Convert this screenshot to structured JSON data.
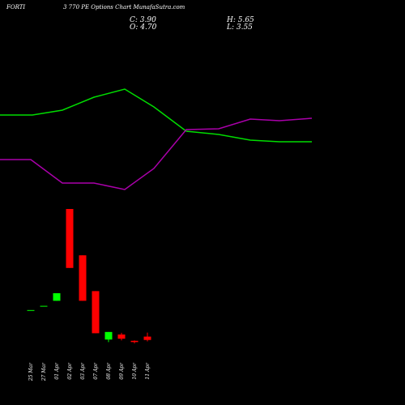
{
  "header": {
    "symbol": "FORTI",
    "subtitle": "3 770 PE Options Chart MunafaSutra.com",
    "close": "C: 3.90",
    "open": "O: 4.70",
    "high": "H: 5.65",
    "low": "L: 3.55"
  },
  "colors": {
    "background": "#000000",
    "up": "#00ff00",
    "down": "#ff0000",
    "line_green": "#00dd00",
    "line_purple": "#aa00aa",
    "text": "#ffffff"
  },
  "chart_data": {
    "type": "candlestick",
    "categories": [
      "25 Mar",
      "27 Mar",
      "01 Apr",
      "02 Apr",
      "03 Apr",
      "07 Apr",
      "08 Apr",
      "09 Apr",
      "10 Apr",
      "11 Apr"
    ],
    "candles": [
      {
        "open": 11.0,
        "high": 11.0,
        "low": 11.0,
        "close": 11.0
      },
      {
        "open": 12.0,
        "high": 12.0,
        "low": 12.0,
        "close": 12.0
      },
      {
        "open": 13.2,
        "high": 15.0,
        "low": 13.2,
        "close": 15.0
      },
      {
        "open": 35.0,
        "high": 35.0,
        "low": 21.0,
        "close": 21.0
      },
      {
        "open": 24.0,
        "high": 24.0,
        "low": 13.2,
        "close": 13.2
      },
      {
        "open": 15.5,
        "high": 15.5,
        "low": 5.5,
        "close": 5.5
      },
      {
        "open": 4.0,
        "high": 5.8,
        "low": 3.4,
        "close": 5.8
      },
      {
        "open": 5.2,
        "high": 5.6,
        "low": 3.8,
        "close": 4.2
      },
      {
        "open": 3.7,
        "high": 3.8,
        "low": 3.1,
        "close": 3.4
      },
      {
        "open": 4.7,
        "high": 5.65,
        "low": 3.55,
        "close": 3.9
      }
    ],
    "indicator_lines": [
      {
        "color": "#00dd00",
        "points": [
          [
            0,
            142
          ],
          [
            40,
            142
          ],
          [
            77,
            136
          ],
          [
            116,
            120
          ],
          [
            154,
            110
          ],
          [
            190,
            132
          ],
          [
            230,
            162
          ],
          [
            270,
            166
          ],
          [
            309,
            173
          ],
          [
            345,
            175
          ],
          [
            385,
            175
          ]
        ]
      },
      {
        "color": "#aa00aa",
        "points": [
          [
            0,
            197
          ],
          [
            38,
            197
          ],
          [
            77,
            226
          ],
          [
            116,
            226
          ],
          [
            154,
            234
          ],
          [
            190,
            208
          ],
          [
            230,
            160
          ],
          [
            270,
            159
          ],
          [
            309,
            147
          ],
          [
            345,
            149
          ],
          [
            385,
            146
          ]
        ]
      }
    ]
  }
}
